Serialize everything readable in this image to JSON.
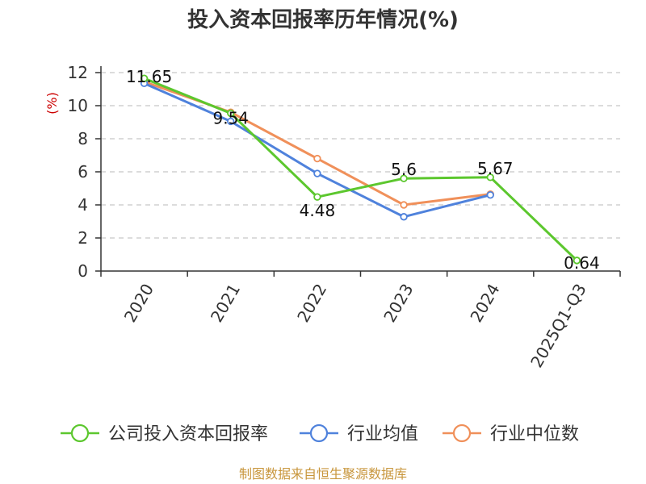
{
  "chart_data": {
    "type": "line",
    "title": "投入资本回报率历年情况(%)",
    "ylabel": "(%)",
    "xlabel": "",
    "categories": [
      "2020",
      "2021",
      "2022",
      "2023",
      "2024",
      "2025Q1-Q3"
    ],
    "ylim": [
      0,
      12
    ],
    "yticks": [
      0,
      2,
      4,
      6,
      8,
      10,
      12
    ],
    "grid": "horizontal-dashed",
    "legend_position": "bottom",
    "series": [
      {
        "name": "公司投入资本回报率",
        "color": "#5cc72e",
        "values": [
          11.65,
          9.54,
          4.48,
          5.6,
          5.67,
          0.64
        ],
        "labels": [
          "11.65",
          "9.54",
          "4.48",
          "5.6",
          "5.67",
          "0.64"
        ]
      },
      {
        "name": "行业均值",
        "color": "#4f82dc",
        "values": [
          11.35,
          9.05,
          5.9,
          3.28,
          4.6,
          null
        ]
      },
      {
        "name": "行业中位数",
        "color": "#f0905a",
        "values": [
          11.45,
          9.6,
          6.8,
          4.0,
          4.65,
          null
        ]
      }
    ]
  },
  "footer": "制图数据来自恒生聚源数据库"
}
